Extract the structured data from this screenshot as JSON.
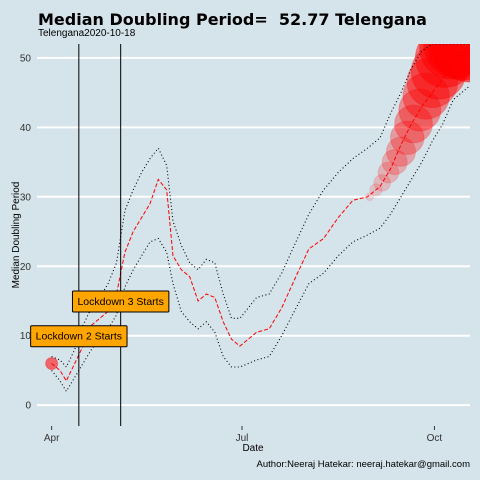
{
  "title": "Median Doubling Period=  52.77 Telengana",
  "subtitle": "Telengana2020-10-18",
  "author": "Author:Neeraj Hatekar: neeraj.hatekar@gmail.com",
  "colors": {
    "background": "#d5e3ea",
    "median_line": "#ff0000",
    "bands": "#000000",
    "points": "#ff0000",
    "annotation_fill": "#ffa500"
  },
  "chart_data": {
    "type": "line",
    "title": "Median Doubling Period=  52.77 Telengana",
    "xlabel": "Date",
    "ylabel": "Median Doubling Period",
    "xlim": [
      "2020-03-25",
      "2020-10-18"
    ],
    "ylim": [
      -3,
      52
    ],
    "x_ticks": [
      {
        "date": "2020-04-01",
        "label": "Apr"
      },
      {
        "date": "2020-07-01",
        "label": "Jul"
      },
      {
        "date": "2020-10-01",
        "label": "Oct"
      }
    ],
    "y_ticks": [
      0,
      10,
      20,
      30,
      40,
      50
    ],
    "grid": true,
    "vlines": [
      {
        "date": "2020-04-14",
        "label": "Lockdown 2 Starts",
        "label_y": 10
      },
      {
        "date": "2020-05-04",
        "label": "Lockdown 3 Starts",
        "label_y": 15
      }
    ],
    "series": [
      {
        "name": "median",
        "style": "dashed",
        "color": "#ff0000",
        "x": [
          "2020-04-01",
          "2020-04-05",
          "2020-04-08",
          "2020-04-12",
          "2020-04-16",
          "2020-04-20",
          "2020-04-24",
          "2020-04-28",
          "2020-05-02",
          "2020-05-06",
          "2020-05-10",
          "2020-05-14",
          "2020-05-18",
          "2020-05-22",
          "2020-05-26",
          "2020-05-29",
          "2020-06-02",
          "2020-06-06",
          "2020-06-10",
          "2020-06-14",
          "2020-06-18",
          "2020-06-22",
          "2020-06-26",
          "2020-06-30",
          "2020-07-04",
          "2020-07-08",
          "2020-07-14",
          "2020-07-20",
          "2020-07-26",
          "2020-08-02",
          "2020-08-09",
          "2020-08-16",
          "2020-08-23",
          "2020-08-30",
          "2020-09-05",
          "2020-09-10",
          "2020-09-15",
          "2020-09-20",
          "2020-09-25",
          "2020-09-30",
          "2020-10-05",
          "2020-10-10",
          "2020-10-18"
        ],
        "values": [
          6,
          5,
          3.5,
          6,
          8.5,
          11.5,
          12.5,
          13.5,
          16,
          22,
          25,
          27,
          29,
          32.5,
          31,
          21.5,
          19.5,
          18.5,
          15,
          16,
          15.5,
          12,
          9.5,
          8.5,
          9.5,
          10.5,
          11,
          14,
          18,
          22.5,
          24,
          27,
          29.5,
          30,
          31.5,
          34,
          37.5,
          40.5,
          43,
          45,
          47,
          49,
          52
        ]
      },
      {
        "name": "upper",
        "style": "dotted",
        "color": "#000000",
        "x": [
          "2020-04-01",
          "2020-04-05",
          "2020-04-08",
          "2020-04-12",
          "2020-04-16",
          "2020-04-20",
          "2020-04-24",
          "2020-04-28",
          "2020-05-02",
          "2020-05-06",
          "2020-05-10",
          "2020-05-14",
          "2020-05-18",
          "2020-05-22",
          "2020-05-26",
          "2020-05-29",
          "2020-06-02",
          "2020-06-06",
          "2020-06-10",
          "2020-06-14",
          "2020-06-18",
          "2020-06-22",
          "2020-06-26",
          "2020-06-30",
          "2020-07-04",
          "2020-07-08",
          "2020-07-14",
          "2020-07-20",
          "2020-07-26",
          "2020-08-02",
          "2020-08-09",
          "2020-08-16",
          "2020-08-23",
          "2020-08-30",
          "2020-09-05",
          "2020-09-10",
          "2020-09-15",
          "2020-09-20",
          "2020-09-25",
          "2020-09-30",
          "2020-10-05",
          "2020-10-10",
          "2020-10-18"
        ],
        "values": [
          7,
          6.5,
          5.5,
          8,
          11.5,
          14,
          15.5,
          17.5,
          20.5,
          28,
          31,
          33.5,
          35.5,
          37,
          34.5,
          26.5,
          23,
          20.5,
          19.5,
          21,
          20.5,
          16,
          12.5,
          12.5,
          14,
          15.5,
          16,
          19,
          23,
          27.5,
          31,
          33.5,
          35.5,
          37,
          38.5,
          42,
          45,
          48.5,
          51,
          52,
          52,
          52,
          52
        ]
      },
      {
        "name": "lower",
        "style": "dotted",
        "color": "#000000",
        "x": [
          "2020-04-01",
          "2020-04-05",
          "2020-04-08",
          "2020-04-12",
          "2020-04-16",
          "2020-04-20",
          "2020-04-24",
          "2020-04-28",
          "2020-05-02",
          "2020-05-06",
          "2020-05-10",
          "2020-05-14",
          "2020-05-18",
          "2020-05-22",
          "2020-05-26",
          "2020-05-29",
          "2020-06-02",
          "2020-06-06",
          "2020-06-10",
          "2020-06-14",
          "2020-06-18",
          "2020-06-22",
          "2020-06-26",
          "2020-06-30",
          "2020-07-04",
          "2020-07-08",
          "2020-07-14",
          "2020-07-20",
          "2020-07-26",
          "2020-08-02",
          "2020-08-09",
          "2020-08-16",
          "2020-08-23",
          "2020-08-30",
          "2020-09-05",
          "2020-09-10",
          "2020-09-15",
          "2020-09-20",
          "2020-09-25",
          "2020-09-30",
          "2020-10-05",
          "2020-10-10",
          "2020-10-18"
        ],
        "values": [
          5,
          3.5,
          2,
          4,
          6,
          8,
          9.5,
          11,
          13,
          17,
          19.5,
          21.5,
          23.5,
          24,
          22,
          17.5,
          13.5,
          12,
          11,
          12,
          10.5,
          7,
          5.5,
          5.5,
          6,
          6.5,
          7,
          10,
          13.5,
          17.5,
          19,
          21.5,
          23.5,
          24.5,
          25.5,
          27.5,
          30,
          32.5,
          35,
          38,
          40.5,
          44,
          46
        ]
      }
    ],
    "points": {
      "name": "points",
      "color": "#ff0000",
      "x": [
        "2020-04-01",
        "2020-08-31",
        "2020-09-03",
        "2020-09-06",
        "2020-09-09",
        "2020-09-12",
        "2020-09-15",
        "2020-09-18",
        "2020-09-21",
        "2020-09-24",
        "2020-09-27",
        "2020-09-30",
        "2020-10-03",
        "2020-10-06",
        "2020-10-09",
        "2020-10-12",
        "2020-10-15",
        "2020-10-18"
      ],
      "values": [
        6,
        30,
        31,
        32,
        33.5,
        35,
        36.5,
        38.5,
        40.5,
        42.5,
        44.5,
        46.5,
        48,
        50,
        51.5,
        52,
        52,
        52
      ]
    }
  }
}
